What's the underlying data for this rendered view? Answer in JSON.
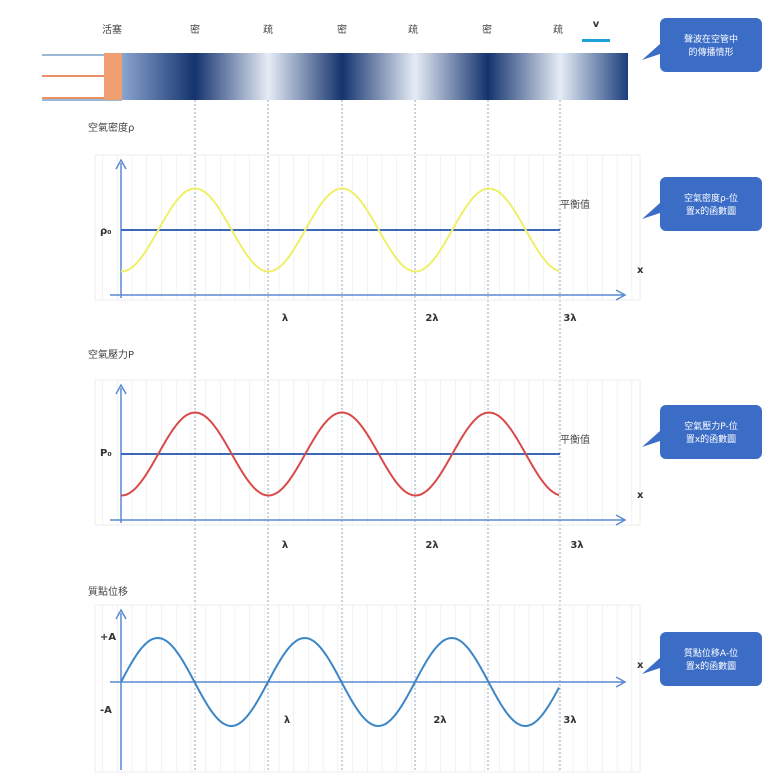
{
  "tube": {
    "labels": [
      "活塞",
      "密",
      "疏",
      "密",
      "疏",
      "密",
      "疏"
    ],
    "velocity": "v"
  },
  "callouts": [
    "聲波在空管中的傳播情形",
    "空氣密度ρ-位置x的函數圖",
    "空氣壓力P-位置x的函數圖",
    "質點位移A-位置x的函數圖"
  ],
  "plots": [
    {
      "title": "空氣密度ρ",
      "y_labels": [
        "ρ₀"
      ],
      "equilibrium": "平衡值",
      "x_label": "x",
      "ticks": [
        "λ",
        "2λ",
        "3λ"
      ]
    },
    {
      "title": "空氣壓力P",
      "y_labels": [
        "P₀"
      ],
      "equilibrium": "平衡值",
      "x_label": "x",
      "ticks": [
        "λ",
        "2λ",
        "3λ"
      ]
    },
    {
      "title": "質點位移",
      "y_labels": [
        "+A",
        "-A"
      ],
      "x_label": "x",
      "ticks": [
        "λ",
        "2λ",
        "3λ"
      ]
    }
  ]
}
